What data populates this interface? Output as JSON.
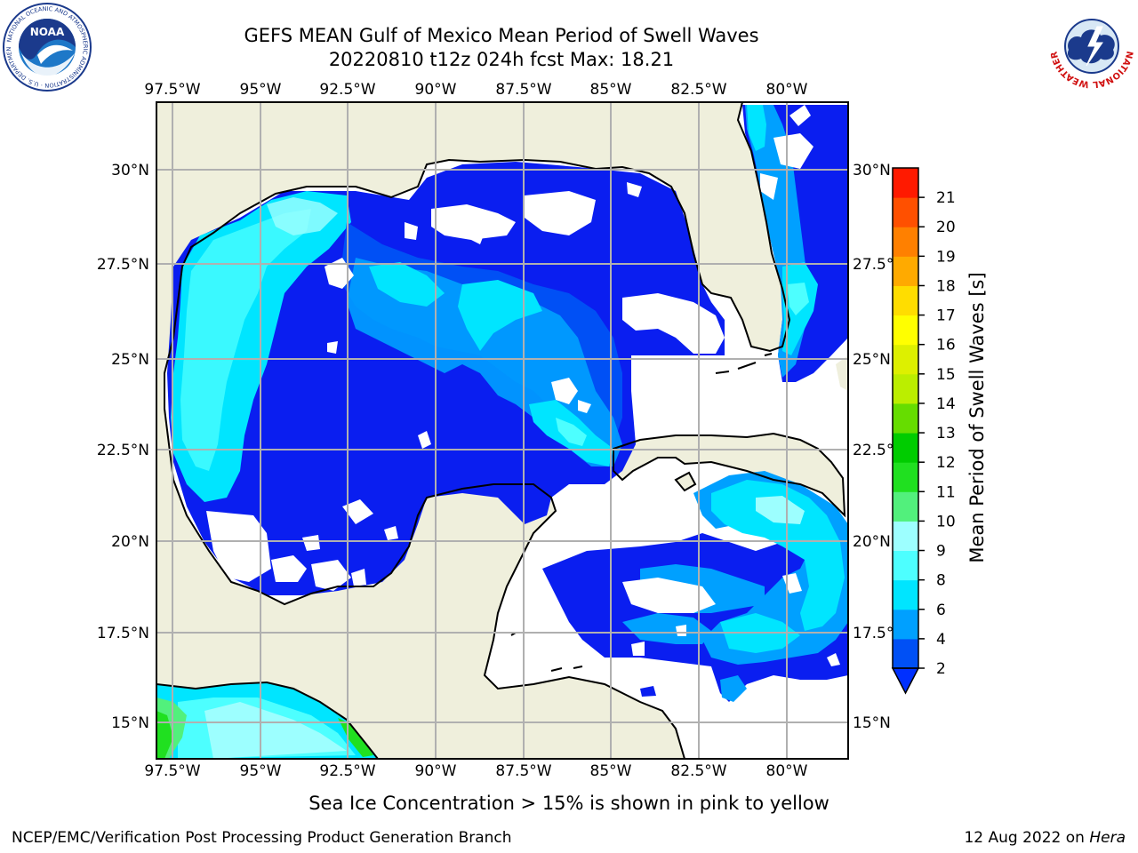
{
  "header": {
    "title_line1": "GEFS MEAN Gulf of Mexico Mean Period of Swell Waves",
    "title_line2": "20220810 t12z 024h fcst   Max: 18.21"
  },
  "logos": {
    "left": "noaa-logo",
    "left_text": "NOAA",
    "left_ring_text": "NATIONAL OCEANIC AND ATMOSPHERIC ADMINISTRATION · U.S. DEPARTMENT OF COMMERCE",
    "right": "nws-logo",
    "right_ring_text": "NATIONAL WEATHER SERVICE"
  },
  "map": {
    "lon_labels": [
      "97.5°W",
      "95°W",
      "92.5°W",
      "90°W",
      "87.5°W",
      "85°W",
      "82.5°W",
      "80°W"
    ],
    "lat_labels": [
      "30°N",
      "27.5°N",
      "25°N",
      "22.5°N",
      "20°N",
      "17.5°N",
      "15°N"
    ],
    "colors": {
      "land": "#efefdc",
      "ocean_nodata": "#ffffff",
      "grid": "#b0b0b0"
    }
  },
  "colorbar": {
    "label": "Mean Period of Swell Waves [s]",
    "ticks": [
      "2",
      "4",
      "6",
      "8",
      "9",
      "10",
      "11",
      "12",
      "13",
      "14",
      "15",
      "16",
      "17",
      "18",
      "19",
      "20",
      "21"
    ],
    "colors": [
      "#0050f5",
      "#00a0ff",
      "#00e5ff",
      "#4dffff",
      "#9dffff",
      "#52f07c",
      "#20e020",
      "#00cc00",
      "#66dd00",
      "#bbee00",
      "#ddf000",
      "#ffff00",
      "#ffdd00",
      "#ffaa00",
      "#ff8000",
      "#ff5000",
      "#ff1a00"
    ]
  },
  "footer": {
    "note": "Sea Ice Concentration > 15% is shown in pink to yellow",
    "credit": "NCEP/EMC/Verification Post Processing Product Generation Branch",
    "date": "12 Aug 2022 on",
    "machine": "Hera"
  }
}
